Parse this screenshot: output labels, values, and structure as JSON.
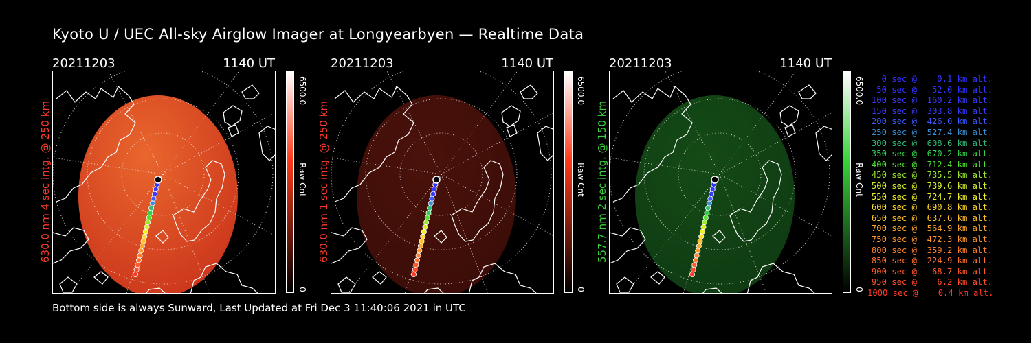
{
  "title": "Kyoto U / UEC All-sky Airglow Imager at Longyearbyen — Realtime Data",
  "footer": "Bottom side is always Sunward, Last Updated at Fri Dec  3 11:40:06 2021 in UTC",
  "panels": [
    {
      "date": "20211203",
      "time": "1140 UT",
      "ylabel": "630.0 nm 4 sec intg. @ 250 km",
      "color": "#ff3a2a",
      "image_fill": "#c9321a",
      "image_hot": "#e9662d",
      "cbar_top": "#ffffff",
      "cbar_mid": "#ff3a18",
      "cbar_bottom": "#000000",
      "cbar_max": "6500.0",
      "cbar_unit": "Raw Cnt",
      "cbar_min": "0"
    },
    {
      "date": "20211203",
      "time": "1140 UT",
      "ylabel": "630.0 nm 1 sec intg. @ 250 km",
      "color": "#ff3a2a",
      "image_fill": "#3a0c08",
      "image_hot": "#4a120a",
      "cbar_top": "#ffffff",
      "cbar_mid": "#ff3a18",
      "cbar_bottom": "#000000",
      "cbar_max": "6500.0",
      "cbar_unit": "Raw Cnt",
      "cbar_min": "0"
    },
    {
      "date": "20211203",
      "time": "1140 UT",
      "ylabel": "557.7 nm 2 sec intg. @ 150 km",
      "color": "#3ad23a",
      "image_fill": "#0f3a12",
      "image_hot": "#144a16",
      "cbar_top": "#ffffff",
      "cbar_mid": "#3ad23a",
      "cbar_bottom": "#000000",
      "cbar_max": "6500.0",
      "cbar_unit": "Raw Cnt",
      "cbar_min": "0"
    }
  ],
  "legend": [
    {
      "text": "0 sec @    0.1 km alt.",
      "color": "#3232ff"
    },
    {
      "text": "50 sec @   52.0 km alt.",
      "color": "#3232ff"
    },
    {
      "text": "100 sec @  160.2 km alt.",
      "color": "#3a3aff"
    },
    {
      "text": "150 sec @  303.8 km alt.",
      "color": "#3a3aff"
    },
    {
      "text": "200 sec @  426.0 km alt.",
      "color": "#3a5aff"
    },
    {
      "text": "250 sec @  527.4 km alt.",
      "color": "#3a8fd0"
    },
    {
      "text": "300 sec @  608.6 km alt.",
      "color": "#2fbf7a"
    },
    {
      "text": "350 sec @  670.2 km alt.",
      "color": "#2fd04a"
    },
    {
      "text": "400 sec @  712.4 km alt.",
      "color": "#50e030"
    },
    {
      "text": "450 sec @  735.5 km alt.",
      "color": "#9ae82a"
    },
    {
      "text": "500 sec @  739.6 km alt.",
      "color": "#d8ee2a"
    },
    {
      "text": "550 sec @  724.7 km alt.",
      "color": "#f0f02a"
    },
    {
      "text": "600 sec @  690.8 km alt.",
      "color": "#ffd82a"
    },
    {
      "text": "650 sec @  637.6 km alt.",
      "color": "#ffc02a"
    },
    {
      "text": "700 sec @  564.9 km alt.",
      "color": "#ffa82a"
    },
    {
      "text": "750 sec @  472.3 km alt.",
      "color": "#ff962a"
    },
    {
      "text": "800 sec @  359.2 km alt.",
      "color": "#ff822a"
    },
    {
      "text": "850 sec @  224.9 km alt.",
      "color": "#ff702a"
    },
    {
      "text": "900 sec @   68.7 km alt.",
      "color": "#ff5a2a"
    },
    {
      "text": "950 sec @    6.2 km alt.",
      "color": "#ff4a2a"
    },
    {
      "text": "1000 sec @    0.4 km alt.",
      "color": "#ff3a2a"
    }
  ]
}
